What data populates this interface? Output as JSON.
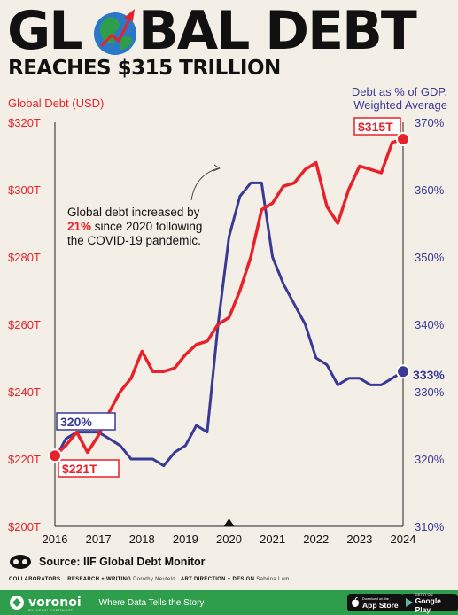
{
  "header": {
    "title_part1": "GL",
    "title_part2": "BAL DEBT",
    "subtitle": "REACHES $315 TRILLION"
  },
  "axes": {
    "left_label": "Global Debt (USD)",
    "right_label_line1": "Debt as % of GDP,",
    "right_label_line2": "Weighted Average"
  },
  "annotation": {
    "line1": "Global debt increased by",
    "highlight": "21%",
    "line2_rest": " since 2020 following",
    "line3": "the COVID-19 pandemic."
  },
  "callouts": {
    "start_debt": "$221T",
    "end_debt": "$315T",
    "start_pct": "320%",
    "end_pct": "333%"
  },
  "footer": {
    "source": "Source: IIF Global Debt Monitor",
    "collaborators": "COLLABORATORS",
    "research_label": "RESEARCH + WRITING",
    "research_name": "Dorothy Neufeld",
    "art_label": "ART DIRECTION + DESIGN",
    "art_name": "Sabrina Lam",
    "brand": "voronoi",
    "brand_sub": "BY VISUAL CAPITALIST",
    "tagline": "Where Data Tells the Story",
    "appstore_small": "Download on the",
    "appstore": "App Store",
    "googleplay_small": "GET IT ON",
    "googleplay": "Google Play"
  },
  "colors": {
    "debt": "#e8222a",
    "pct": "#3a3a96",
    "background": "#f3efe6",
    "brand_green": "#2f9e4c"
  },
  "chart_data": {
    "type": "line",
    "title": "Global Debt Reaches $315 Trillion",
    "x_ticks": [
      "2016",
      "2017",
      "2018",
      "2019",
      "2020",
      "2021",
      "2022",
      "2023",
      "2024"
    ],
    "xlim": [
      2016,
      2024
    ],
    "y_left": {
      "label": "Global Debt (USD)",
      "ticks": [
        "$200T",
        "$220T",
        "$240T",
        "$260T",
        "$280T",
        "$300T",
        "$320T"
      ],
      "range": [
        200,
        320
      ],
      "unit": "trillion USD"
    },
    "y_right": {
      "label": "Debt as % of GDP, Weighted Average",
      "ticks": [
        "310%",
        "320%",
        "330%",
        "340%",
        "350%",
        "360%",
        "370%"
      ],
      "range": [
        310,
        370
      ],
      "unit": "%"
    },
    "marker": {
      "x": 2020,
      "label": "2020"
    },
    "series": [
      {
        "name": "Global Debt (USD)",
        "axis": "left",
        "x": [
          2016,
          2016.25,
          2016.5,
          2016.75,
          2017,
          2017.25,
          2017.5,
          2017.75,
          2018,
          2018.25,
          2018.5,
          2018.75,
          2019,
          2019.25,
          2019.5,
          2019.75,
          2020,
          2020.25,
          2020.5,
          2020.75,
          2021,
          2021.25,
          2021.5,
          2021.75,
          2022,
          2022.25,
          2022.5,
          2022.75,
          2023,
          2023.25,
          2023.5,
          2023.75,
          2024
        ],
        "values": [
          221,
          224,
          228,
          222,
          227,
          234,
          240,
          244,
          252,
          246,
          246,
          247,
          251,
          254,
          255,
          260,
          262,
          270,
          280,
          294,
          296,
          301,
          302,
          306,
          308,
          295,
          290,
          300,
          307,
          306,
          305,
          314,
          315
        ]
      },
      {
        "name": "Debt as % of GDP, Weighted Average",
        "axis": "right",
        "x": [
          2016,
          2016.25,
          2016.5,
          2016.75,
          2017,
          2017.25,
          2017.5,
          2017.75,
          2018,
          2018.25,
          2018.5,
          2018.75,
          2019,
          2019.25,
          2019.5,
          2019.75,
          2020,
          2020.25,
          2020.5,
          2020.75,
          2021,
          2021.25,
          2021.5,
          2021.75,
          2022,
          2022.25,
          2022.5,
          2022.75,
          2023,
          2023.25,
          2023.5,
          2023.75,
          2024
        ],
        "values": [
          320,
          323,
          324,
          324,
          324,
          323,
          322,
          320,
          320,
          320,
          319,
          321,
          322,
          325,
          324,
          340,
          353,
          359,
          361,
          361,
          350,
          346,
          343,
          340,
          335,
          334,
          331,
          332,
          332,
          331,
          331,
          332,
          333
        ]
      }
    ]
  }
}
